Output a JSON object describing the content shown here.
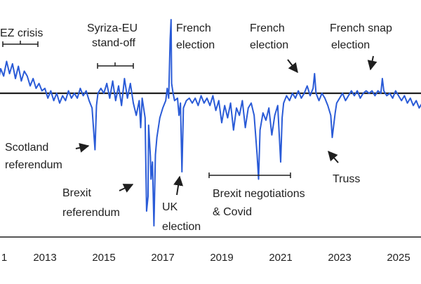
{
  "chart_data": {
    "type": "line",
    "title": "",
    "xlabel": "",
    "ylabel": "",
    "x_ticks": [
      "1",
      "2013",
      "2015",
      "2017",
      "2019",
      "2021",
      "2023",
      "2025"
    ],
    "x_range": [
      2011.4,
      2026.3
    ],
    "y_range": [
      -5.5,
      3.1
    ],
    "baseline": 0,
    "series": [
      {
        "color": "#2a5bd7",
        "points": [
          [
            2011.4,
            0.4
          ],
          [
            2011.5,
            1.0
          ],
          [
            2011.6,
            0.7
          ],
          [
            2011.7,
            1.3
          ],
          [
            2011.8,
            0.8
          ],
          [
            2011.9,
            1.2
          ],
          [
            2012.0,
            0.6
          ],
          [
            2012.1,
            1.1
          ],
          [
            2012.2,
            0.5
          ],
          [
            2012.3,
            0.9
          ],
          [
            2012.4,
            0.7
          ],
          [
            2012.5,
            0.3
          ],
          [
            2012.6,
            0.6
          ],
          [
            2012.7,
            0.2
          ],
          [
            2012.8,
            0.4
          ],
          [
            2012.9,
            0.1
          ],
          [
            2013.0,
            0.2
          ],
          [
            2013.1,
            -0.2
          ],
          [
            2013.2,
            0.1
          ],
          [
            2013.3,
            -0.3
          ],
          [
            2013.4,
            0.0
          ],
          [
            2013.5,
            -0.4
          ],
          [
            2013.6,
            -0.1
          ],
          [
            2013.7,
            -0.3
          ],
          [
            2013.8,
            0.1
          ],
          [
            2013.9,
            -0.2
          ],
          [
            2014.0,
            0.0
          ],
          [
            2014.1,
            -0.2
          ],
          [
            2014.2,
            0.2
          ],
          [
            2014.3,
            -0.1
          ],
          [
            2014.4,
            0.1
          ],
          [
            2014.5,
            -0.3
          ],
          [
            2014.6,
            -0.6
          ],
          [
            2014.7,
            -2.3
          ],
          [
            2014.75,
            -0.5
          ],
          [
            2014.8,
            0.0
          ],
          [
            2014.9,
            0.2
          ],
          [
            2015.0,
            0.0
          ],
          [
            2015.1,
            0.4
          ],
          [
            2015.2,
            -0.2
          ],
          [
            2015.3,
            0.5
          ],
          [
            2015.4,
            -0.3
          ],
          [
            2015.5,
            0.3
          ],
          [
            2015.6,
            -0.5
          ],
          [
            2015.7,
            0.6
          ],
          [
            2015.8,
            -0.2
          ],
          [
            2015.9,
            0.4
          ],
          [
            2016.0,
            -0.4
          ],
          [
            2016.1,
            -0.9
          ],
          [
            2016.2,
            -0.3
          ],
          [
            2016.25,
            -1.4
          ],
          [
            2016.3,
            -0.2
          ],
          [
            2016.4,
            -1.0
          ],
          [
            2016.45,
            -4.8
          ],
          [
            2016.5,
            -4.2
          ],
          [
            2016.52,
            -1.3
          ],
          [
            2016.58,
            -2.6
          ],
          [
            2016.6,
            -3.5
          ],
          [
            2016.65,
            -2.8
          ],
          [
            2016.7,
            -5.4
          ],
          [
            2016.75,
            -2.5
          ],
          [
            2016.8,
            -1.8
          ],
          [
            2016.9,
            -1.0
          ],
          [
            2017.0,
            -0.6
          ],
          [
            2017.1,
            -0.3
          ],
          [
            2017.15,
            0.2
          ],
          [
            2017.2,
            -0.2
          ],
          [
            2017.25,
            2.2
          ],
          [
            2017.28,
            3.0
          ],
          [
            2017.3,
            0.4
          ],
          [
            2017.35,
            0.0
          ],
          [
            2017.4,
            -0.3
          ],
          [
            2017.5,
            -0.2
          ],
          [
            2017.55,
            -0.9
          ],
          [
            2017.6,
            -0.4
          ],
          [
            2017.65,
            -3.2
          ],
          [
            2017.7,
            -0.6
          ],
          [
            2017.8,
            -0.3
          ],
          [
            2017.9,
            -0.2
          ],
          [
            2018.0,
            -0.4
          ],
          [
            2018.1,
            -0.2
          ],
          [
            2018.2,
            -0.5
          ],
          [
            2018.3,
            -0.1
          ],
          [
            2018.4,
            -0.4
          ],
          [
            2018.5,
            -0.2
          ],
          [
            2018.6,
            -0.5
          ],
          [
            2018.7,
            -0.1
          ],
          [
            2018.8,
            -0.7
          ],
          [
            2018.9,
            -0.3
          ],
          [
            2019.0,
            -1.2
          ],
          [
            2019.1,
            -0.5
          ],
          [
            2019.2,
            -1.0
          ],
          [
            2019.3,
            -0.4
          ],
          [
            2019.4,
            -1.5
          ],
          [
            2019.5,
            -0.6
          ],
          [
            2019.6,
            -0.9
          ],
          [
            2019.7,
            -0.3
          ],
          [
            2019.8,
            -1.4
          ],
          [
            2019.9,
            -0.6
          ],
          [
            2020.0,
            -0.4
          ],
          [
            2020.1,
            -0.9
          ],
          [
            2020.2,
            -2.5
          ],
          [
            2020.25,
            -3.5
          ],
          [
            2020.3,
            -1.5
          ],
          [
            2020.4,
            -0.8
          ],
          [
            2020.5,
            -1.1
          ],
          [
            2020.6,
            -0.6
          ],
          [
            2020.7,
            -1.7
          ],
          [
            2020.8,
            -0.9
          ],
          [
            2020.9,
            -0.5
          ],
          [
            2021.0,
            -2.8
          ],
          [
            2021.05,
            -1.0
          ],
          [
            2021.1,
            -0.4
          ],
          [
            2021.2,
            -0.1
          ],
          [
            2021.3,
            -0.3
          ],
          [
            2021.4,
            0.0
          ],
          [
            2021.5,
            -0.2
          ],
          [
            2021.6,
            0.1
          ],
          [
            2021.7,
            -0.2
          ],
          [
            2021.8,
            0.0
          ],
          [
            2021.9,
            0.3
          ],
          [
            2022.0,
            -0.1
          ],
          [
            2022.1,
            0.2
          ],
          [
            2022.15,
            0.8
          ],
          [
            2022.2,
            0.0
          ],
          [
            2022.3,
            -0.3
          ],
          [
            2022.4,
            0.0
          ],
          [
            2022.5,
            -0.2
          ],
          [
            2022.6,
            -0.5
          ],
          [
            2022.7,
            -0.9
          ],
          [
            2022.75,
            -1.8
          ],
          [
            2022.8,
            -1.3
          ],
          [
            2022.85,
            -0.8
          ],
          [
            2022.9,
            -0.4
          ],
          [
            2023.0,
            -0.2
          ],
          [
            2023.1,
            0.0
          ],
          [
            2023.2,
            -0.3
          ],
          [
            2023.3,
            -0.1
          ],
          [
            2023.4,
            0.1
          ],
          [
            2023.5,
            -0.1
          ],
          [
            2023.6,
            0.1
          ],
          [
            2023.7,
            -0.2
          ],
          [
            2023.8,
            0.0
          ],
          [
            2023.9,
            0.1
          ],
          [
            2024.0,
            0.0
          ],
          [
            2024.1,
            0.1
          ],
          [
            2024.2,
            -0.1
          ],
          [
            2024.3,
            0.1
          ],
          [
            2024.4,
            0.0
          ],
          [
            2024.45,
            0.6
          ],
          [
            2024.5,
            0.1
          ],
          [
            2024.6,
            -0.1
          ],
          [
            2024.7,
            0.0
          ],
          [
            2024.8,
            -0.2
          ],
          [
            2024.9,
            0.1
          ],
          [
            2025.0,
            -0.1
          ],
          [
            2025.1,
            -0.3
          ],
          [
            2025.2,
            -0.1
          ],
          [
            2025.3,
            -0.4
          ],
          [
            2025.4,
            -0.2
          ],
          [
            2025.5,
            -0.5
          ],
          [
            2025.6,
            -0.3
          ],
          [
            2025.7,
            -0.6
          ],
          [
            2025.8,
            -0.4
          ],
          [
            2025.9,
            -0.5
          ],
          [
            2026.0,
            -0.3
          ],
          [
            2026.1,
            -0.6
          ],
          [
            2026.2,
            -0.4
          ],
          [
            2026.25,
            -0.9
          ]
        ]
      }
    ],
    "annotations": [
      {
        "text": [
          "EZ crisis"
        ]
      },
      {
        "text": [
          "Syriza-EU",
          "stand-off"
        ]
      },
      {
        "text": [
          "French",
          "election"
        ]
      },
      {
        "text": [
          "French",
          "election"
        ]
      },
      {
        "text": [
          "French snap",
          "election"
        ]
      },
      {
        "text": [
          "Scotland",
          "referendum"
        ]
      },
      {
        "text": [
          "Brexit",
          "referendum"
        ]
      },
      {
        "text": [
          "UK",
          "election"
        ]
      },
      {
        "text": [
          "Brexit negotiations",
          "& Covid"
        ]
      },
      {
        "text": [
          "Truss"
        ]
      }
    ]
  }
}
